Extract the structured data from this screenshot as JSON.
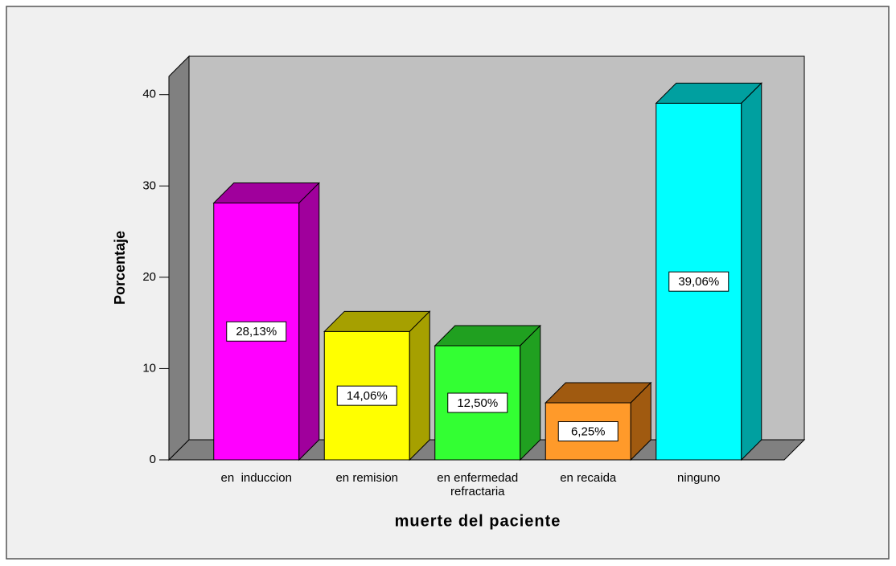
{
  "chart_data": {
    "type": "bar3d",
    "x_label": "muerte del paciente",
    "y_label": "Porcentaje",
    "categories": [
      "en  induccion",
      "en remision",
      "en enfermedad\nrefractaria",
      "en recaida",
      "ninguno"
    ],
    "values": [
      28.13,
      14.06,
      12.5,
      6.25,
      39.06
    ],
    "value_labels": [
      "28,13%",
      "14,06%",
      "12,50%",
      "6,25%",
      "39,06%"
    ],
    "colors": [
      "#ff00ff",
      "#ffff00",
      "#33ff33",
      "#ff9a2a",
      "#00ffff"
    ],
    "side_colors": [
      "#a0009c",
      "#a6a000",
      "#20a020",
      "#a05a10",
      "#00a0a0"
    ],
    "ylim": [
      0,
      42
    ],
    "yticks": [
      0,
      10,
      20,
      30,
      40
    ]
  }
}
